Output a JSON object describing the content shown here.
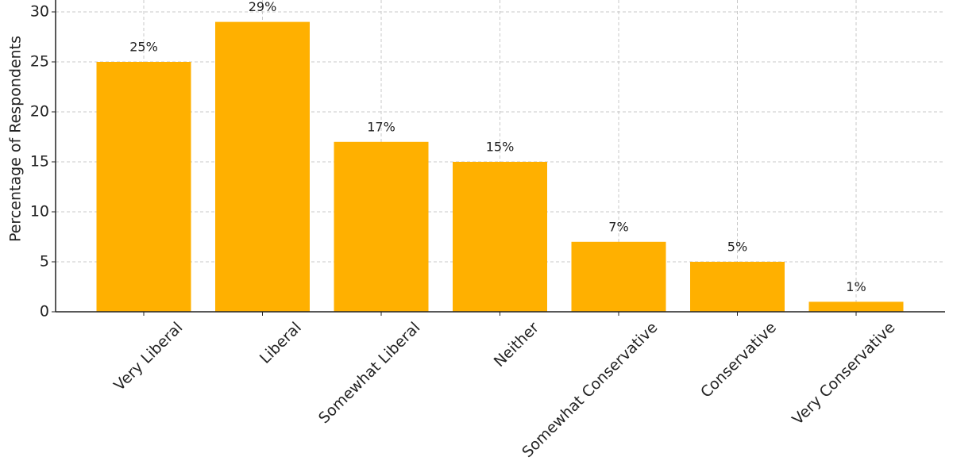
{
  "chart_data": {
    "type": "bar",
    "y_label": "Percentage of Respondents",
    "categories": [
      "Very Liberal",
      "Liberal",
      "Somewhat Liberal",
      "Neither",
      "Somewhat Conservative",
      "Conservative",
      "Very Conservative"
    ],
    "values": [
      25,
      29,
      17,
      15,
      7,
      5,
      1
    ],
    "value_labels": [
      "25%",
      "29%",
      "17%",
      "15%",
      "7%",
      "5%",
      "1%"
    ],
    "color": "#ffb000",
    "ylim": [
      0,
      30
    ],
    "yticks": [
      0,
      5,
      10,
      15,
      20,
      25,
      30
    ],
    "grid": true
  }
}
